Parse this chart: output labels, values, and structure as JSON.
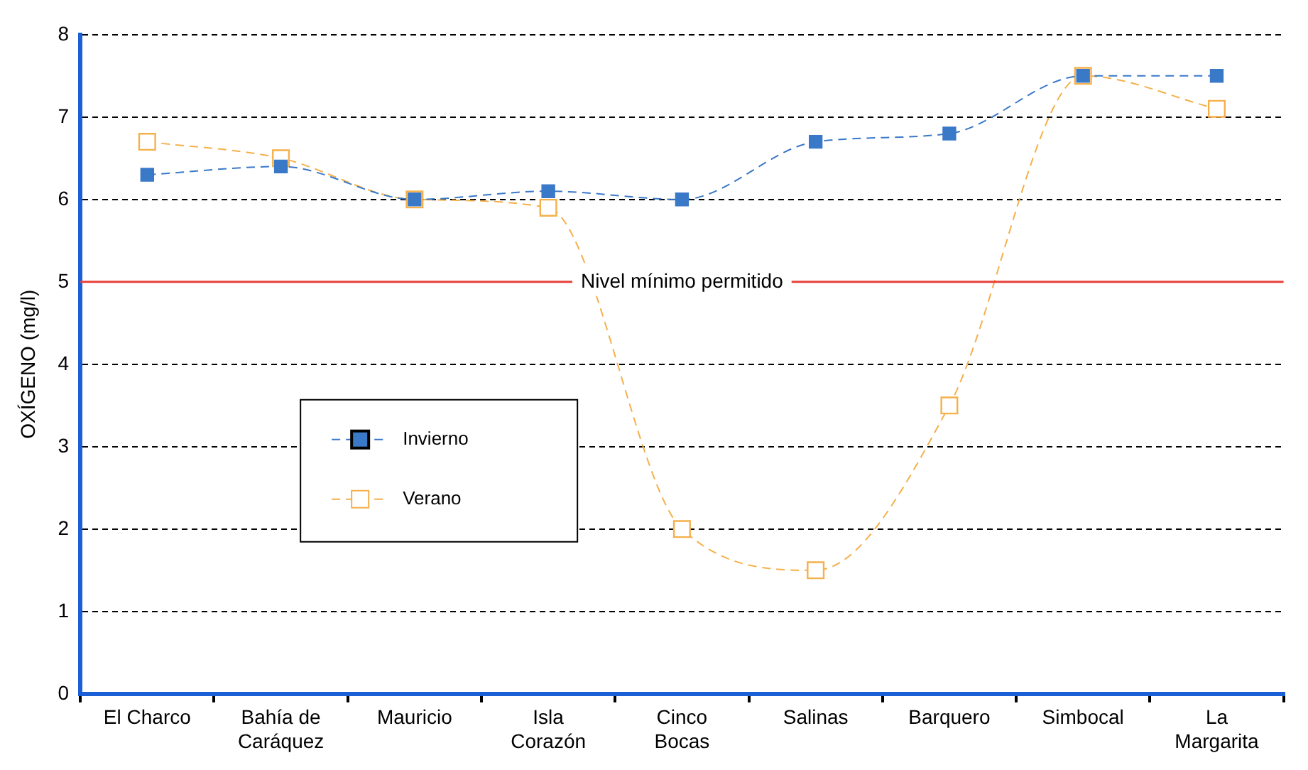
{
  "chart_data": {
    "type": "line",
    "ylabel": "OXÍGENO (mg/l)",
    "categories": [
      "El Charco",
      "Bahía de Caráquez",
      "Mauricio",
      "Isla Corazón",
      "Cinco Bocas",
      "Salinas",
      "Barquero",
      "Simbocal",
      "La Margarita"
    ],
    "series": [
      {
        "name": "Invierno",
        "color": "#3a78c8",
        "marker": "square",
        "line_style": "dashed",
        "values": [
          6.3,
          6.4,
          6.0,
          6.1,
          6.0,
          6.7,
          6.8,
          7.5,
          7.5
        ]
      },
      {
        "name": "Verano",
        "color": "#f5b04a",
        "marker": "square",
        "line_style": "dashed",
        "values": [
          6.7,
          6.5,
          6.0,
          5.9,
          2.0,
          1.5,
          3.5,
          7.5,
          7.1
        ]
      }
    ],
    "ylim": [
      0,
      8
    ],
    "yticks": [
      0,
      1,
      2,
      3,
      4,
      5,
      6,
      7,
      8
    ],
    "grid": "y",
    "legend": "center left",
    "ref_lines": [
      {
        "axis": "y",
        "value": 5,
        "label": "Nivel mínimo permitido",
        "color": "#e8403a"
      }
    ]
  }
}
